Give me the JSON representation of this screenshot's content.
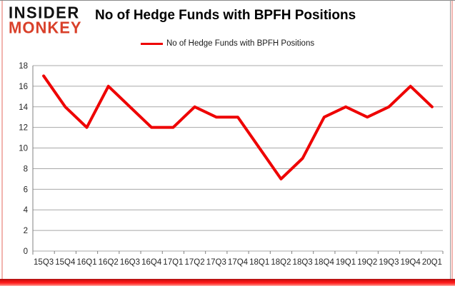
{
  "logo": {
    "line1": "INSIDER",
    "line2": "MONKEY",
    "color1": "#111111",
    "color2": "#d9402a"
  },
  "header": {
    "title": "No of Hedge Funds with BPFH Positions"
  },
  "legend": {
    "label": "No of Hedge Funds with BPFH Positions",
    "swatch_color": "#ee0000"
  },
  "chart_data": {
    "type": "line",
    "title": "No of Hedge Funds with BPFH Positions",
    "categories": [
      "15Q3",
      "15Q4",
      "16Q1",
      "16Q2",
      "16Q3",
      "16Q4",
      "17Q1",
      "17Q2",
      "17Q3",
      "17Q4",
      "18Q1",
      "18Q2",
      "18Q3",
      "18Q4",
      "19Q1",
      "19Q2",
      "19Q3",
      "19Q4",
      "20Q1"
    ],
    "series": [
      {
        "name": "No of Hedge Funds with BPFH Positions",
        "color": "#ee0000",
        "values": [
          17,
          14,
          12,
          16,
          14,
          12,
          12,
          14,
          13,
          13,
          10,
          7,
          9,
          13,
          14,
          13,
          14,
          16,
          14
        ]
      }
    ],
    "xlabel": "",
    "ylabel": "",
    "ylim": [
      0,
      18
    ],
    "ytick_step": 2,
    "grid": true,
    "legend_position": "top"
  },
  "colors": {
    "gridline": "#a8a8a8",
    "axis": "#808080",
    "tick_label": "#262626",
    "line": "#ee0000",
    "frame_pink": "#f2b4ae",
    "bottom_bar_red": "#e01010"
  }
}
